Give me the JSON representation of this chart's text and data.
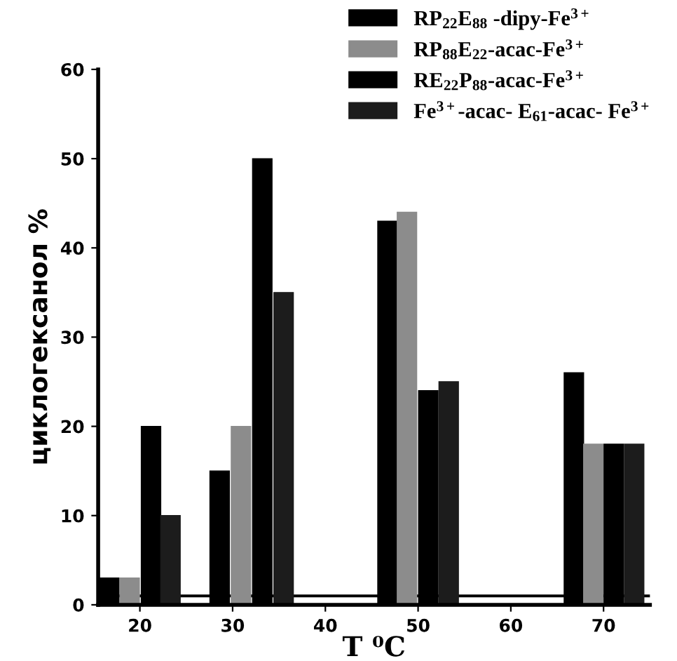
{
  "chart_data": {
    "type": "bar",
    "xlabel": "T ⁰C",
    "ylabel": "циклогексанол %",
    "series": [
      {
        "name": "RP$_{22}$E$_{88}$ -dipy-Fe$^{3+}$",
        "color": "#000000",
        "x": [
          16.7,
          28.6,
          46.7,
          66.8
        ],
        "values": [
          3,
          15,
          43,
          26
        ]
      },
      {
        "name": "RP$_{88}$E$_{22}$-acac-Fe$^{3+}$",
        "color": "#8c8c8c",
        "x": [
          18.9,
          30.9,
          48.8,
          68.9
        ],
        "values": [
          3,
          20,
          44,
          18
        ]
      },
      {
        "name": "RE$_{22}$P$_{88}$-acac-Fe$^{3+}$",
        "color": "#000000",
        "x": [
          21.2,
          33.2,
          51.1,
          71.1
        ],
        "values": [
          20,
          50,
          24,
          18
        ]
      },
      {
        "name": "Fe$^{3+}$-acac- E$_{61}$-acac- Fe$^{3+}$",
        "color": "#1c1c1c",
        "x": [
          23.3,
          35.5,
          53.3,
          73.3
        ],
        "values": [
          10,
          35,
          25,
          18
        ]
      }
    ],
    "xlim": [
      15.5,
      75
    ],
    "xticks": [
      20,
      30,
      40,
      50,
      60,
      70
    ],
    "ylim": [
      0,
      60
    ],
    "yticks": [
      0,
      10,
      20,
      30,
      40,
      50,
      60
    ],
    "ref_lines": [
      {
        "axis": "y",
        "value": 1,
        "color": "#000000"
      }
    ],
    "grid": false,
    "legend": "top right"
  }
}
